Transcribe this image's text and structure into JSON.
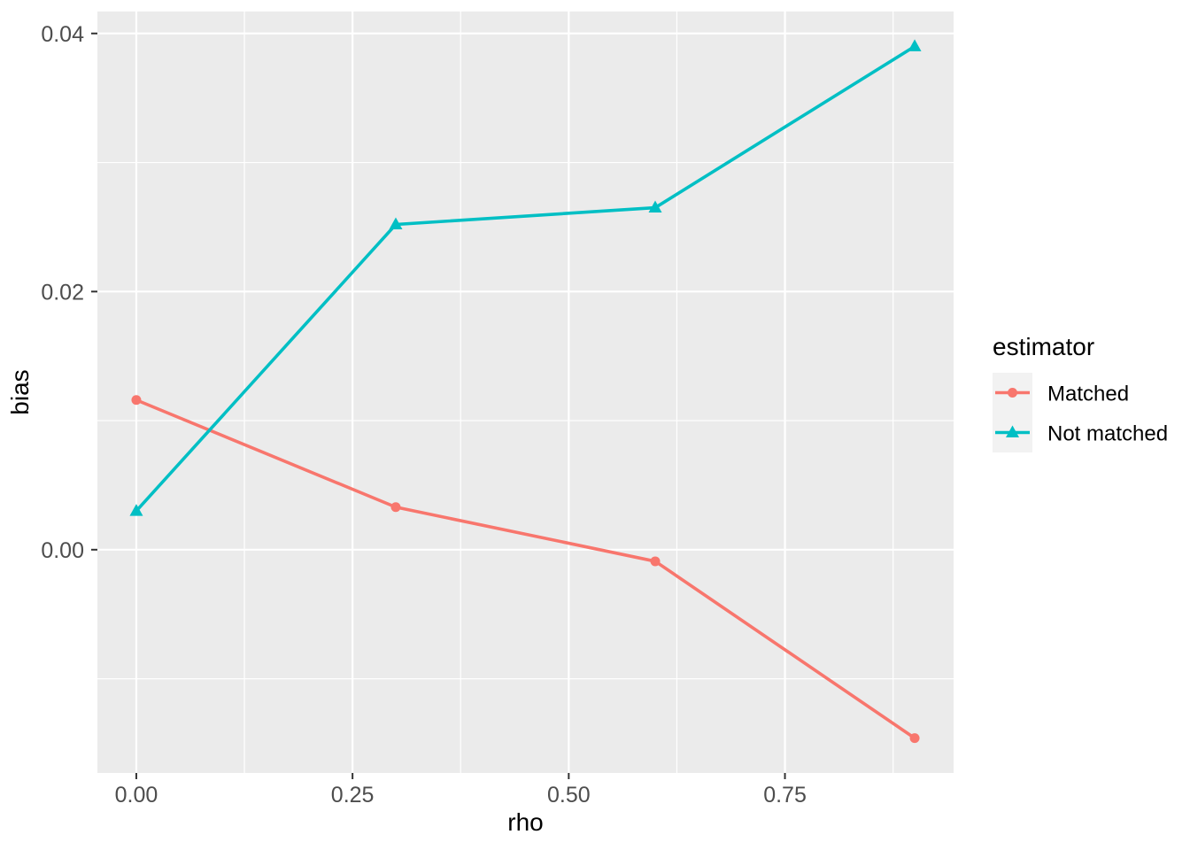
{
  "chart_data": {
    "type": "line",
    "title": "",
    "xlabel": "rho",
    "ylabel": "bias",
    "x": [
      0.0,
      0.3,
      0.6,
      0.9
    ],
    "series": [
      {
        "name": "Matched",
        "color": "#F8766D",
        "marker": "circle",
        "values": [
          0.0116,
          0.0033,
          -0.0009,
          -0.0146
        ]
      },
      {
        "name": "Not matched",
        "color": "#00BFC4",
        "marker": "triangle",
        "values": [
          0.003,
          0.0252,
          0.0265,
          0.039
        ]
      }
    ],
    "xlim": [
      -0.045,
      0.945
    ],
    "ylim": [
      -0.0173,
      0.0417
    ],
    "x_ticks": {
      "values": [
        0.0,
        0.25,
        0.5,
        0.75
      ],
      "labels": [
        "0.00",
        "0.25",
        "0.50",
        "0.75"
      ]
    },
    "y_ticks": {
      "values": [
        0.0,
        0.02,
        0.04
      ],
      "labels": [
        "0.00",
        "0.02",
        "0.04"
      ]
    },
    "x_minor": [
      0.125,
      0.375,
      0.625,
      0.875
    ],
    "y_minor": [
      -0.01,
      0.01,
      0.03
    ],
    "grid": "major+minor",
    "legend": {
      "position": "right",
      "title": "estimator",
      "items": [
        {
          "label": "Matched"
        },
        {
          "label": "Not matched"
        }
      ]
    },
    "theme": {
      "panel_bg": "#EBEBEB",
      "grid_color": "#FFFFFF",
      "tick_mark_color": "#333333",
      "tick_label_color": "#4D4D4D",
      "axis_title_color": "#000000",
      "legend_title_color": "#000000",
      "legend_label_color": "#000000",
      "legend_key_bg": "#F2F2F2",
      "figure_bg": "#FFFFFF"
    }
  }
}
